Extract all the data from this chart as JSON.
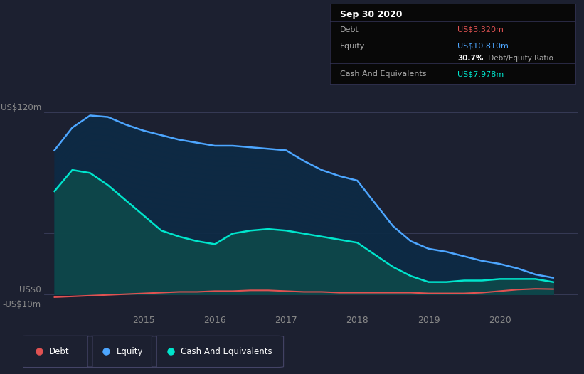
{
  "bg_color": "#1c2030",
  "plot_bg_color": "#1c2030",
  "info_box_bg": "#0d0d0d",
  "y_label_120": "US$120m",
  "y_label_0": "US$0",
  "y_label_neg10": "-US$10m",
  "ylim": [
    -12,
    135
  ],
  "xlim": [
    2013.6,
    2021.1
  ],
  "debt_color": "#e05252",
  "equity_color": "#4da6ff",
  "cash_color": "#00e5cc",
  "equity_fill_top": "#0d3a5c",
  "cash_fill_top": "#0d5c5c",
  "grid_color": "#3a3f5c",
  "years": [
    2013.75,
    2014.0,
    2014.25,
    2014.5,
    2014.75,
    2015.0,
    2015.25,
    2015.5,
    2015.75,
    2016.0,
    2016.25,
    2016.5,
    2016.75,
    2017.0,
    2017.25,
    2017.5,
    2017.75,
    2018.0,
    2018.25,
    2018.5,
    2018.75,
    2019.0,
    2019.25,
    2019.5,
    2019.75,
    2020.0,
    2020.25,
    2020.5,
    2020.75
  ],
  "equity": [
    95,
    110,
    118,
    117,
    112,
    108,
    105,
    102,
    100,
    98,
    98,
    97,
    96,
    95,
    88,
    82,
    78,
    75,
    60,
    45,
    35,
    30,
    28,
    25,
    22,
    20,
    17,
    13,
    10.8
  ],
  "cash": [
    68,
    82,
    80,
    72,
    62,
    52,
    42,
    38,
    35,
    33,
    40,
    42,
    43,
    42,
    40,
    38,
    36,
    34,
    26,
    18,
    12,
    8,
    8,
    9,
    9,
    10,
    10,
    10,
    7.978
  ],
  "debt": [
    -2,
    -1.5,
    -1,
    -0.5,
    0,
    0.5,
    1,
    1.5,
    1.5,
    2,
    2,
    2.5,
    2.5,
    2,
    1.5,
    1.5,
    1,
    1,
    1,
    1,
    1,
    0.5,
    0.5,
    0.5,
    1,
    2,
    3,
    3.5,
    3.32
  ],
  "x_ticks": [
    2015,
    2016,
    2017,
    2018,
    2019,
    2020
  ],
  "x_tick_labels": [
    "2015",
    "2016",
    "2017",
    "2018",
    "2019",
    "2020"
  ],
  "info_box": {
    "title": "Sep 30 2020",
    "rows": [
      {
        "label": "Debt",
        "value": "US$3.320m",
        "value_color": "#e05252"
      },
      {
        "label": "Equity",
        "value": "US$10.810m",
        "value_color": "#4da6ff"
      },
      {
        "label": "",
        "value": "30.7% Debt/Equity Ratio",
        "value_color": "#aaaaaa",
        "bold_prefix": "30.7%"
      },
      {
        "label": "Cash And Equivalents",
        "value": "US$7.978m",
        "value_color": "#00e5cc"
      }
    ]
  },
  "legend_items": [
    {
      "label": "Debt",
      "color": "#e05252"
    },
    {
      "label": "Equity",
      "color": "#4da6ff"
    },
    {
      "label": "Cash And Equivalents",
      "color": "#00e5cc"
    }
  ]
}
